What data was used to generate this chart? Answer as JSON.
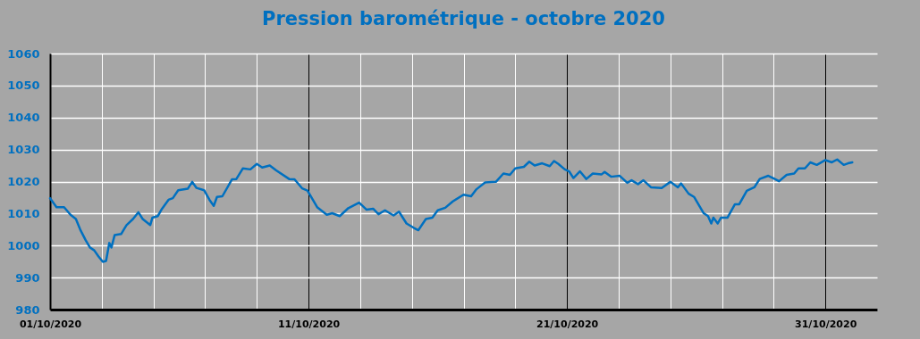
{
  "chart_data": {
    "type": "line",
    "title": "Pression barométrique - octobre 2020",
    "x": [
      "2020-10-01T00:00",
      "2020-10-01T06:00",
      "2020-10-01T13:00",
      "2020-10-01T19:00",
      "2020-10-02T00:00",
      "2020-10-02T04:00",
      "2020-10-02T09:00",
      "2020-10-02T13:00",
      "2020-10-02T17:00",
      "2020-10-02T21:00",
      "2020-10-03T01:00",
      "2020-10-03T04:00",
      "2020-10-03T07:00",
      "2020-10-03T09:00",
      "2020-10-03T12:00",
      "2020-10-03T18:00",
      "2020-10-03T23:00",
      "2020-10-04T05:00",
      "2020-10-04T10:00",
      "2020-10-04T14:00",
      "2020-10-04T21:00",
      "2020-10-04T23:00",
      "2020-10-05T04:00",
      "2020-10-05T08:00",
      "2020-10-05T14:00",
      "2020-10-05T18:00",
      "2020-10-05T23:00",
      "2020-10-06T08:00",
      "2020-10-06T12:00",
      "2020-10-06T16:00",
      "2020-10-06T23:00",
      "2020-10-07T04:00",
      "2020-10-07T08:00",
      "2020-10-07T11:00",
      "2020-10-07T16:00",
      "2020-10-08T01:00",
      "2020-10-08T05:00",
      "2020-10-08T11:00",
      "2020-10-08T18:00",
      "2020-10-09T00:00",
      "2020-10-09T05:00",
      "2020-10-09T12:00",
      "2020-10-09T18:00",
      "2020-10-10T06:00",
      "2020-10-10T11:00",
      "2020-10-10T18:00",
      "2020-10-10T23:00",
      "2020-10-11T04:00",
      "2020-10-11T08:00",
      "2020-10-11T17:00",
      "2020-10-11T22:00",
      "2020-10-12T05:00",
      "2020-10-12T13:00",
      "2020-10-12T23:00",
      "2020-10-13T06:00",
      "2020-10-13T12:00",
      "2020-10-13T17:00",
      "2020-10-13T23:00",
      "2020-10-14T07:00",
      "2020-10-14T12:00",
      "2020-10-14T19:00",
      "2020-10-15T02:00",
      "2020-10-15T06:00",
      "2020-10-15T13:00",
      "2020-10-15T19:00",
      "2020-10-16T00:00",
      "2020-10-16T07:00",
      "2020-10-16T14:00",
      "2020-10-17T00:00",
      "2020-10-17T07:00",
      "2020-10-17T12:00",
      "2020-10-17T20:00",
      "2020-10-18T06:00",
      "2020-10-18T13:00",
      "2020-10-18T19:00",
      "2020-10-19T00:00",
      "2020-10-19T08:00",
      "2020-10-19T13:00",
      "2020-10-19T18:00",
      "2020-10-20T01:00",
      "2020-10-20T08:00",
      "2020-10-20T12:00",
      "2020-10-20T16:00",
      "2020-10-20T22:00",
      "2020-10-21T02:00",
      "2020-10-21T06:00",
      "2020-10-21T12:00",
      "2020-10-21T18:00",
      "2020-10-22T00:00",
      "2020-10-22T08:00",
      "2020-10-22T11:00",
      "2020-10-22T17:00",
      "2020-10-23T01:00",
      "2020-10-23T08:00",
      "2020-10-23T12:00",
      "2020-10-23T18:00",
      "2020-10-23T23:00",
      "2020-10-24T06:00",
      "2020-10-24T16:00",
      "2020-10-25T00:00",
      "2020-10-25T07:00",
      "2020-10-25T10:00",
      "2020-10-25T17:00",
      "2020-10-25T22:00",
      "2020-10-26T07:00",
      "2020-10-26T11:00",
      "2020-10-26T14:00",
      "2020-10-26T16:00",
      "2020-10-26T20:00",
      "2020-10-26T23:00",
      "2020-10-27T05:00",
      "2020-10-27T12:00",
      "2020-10-27T16:00",
      "2020-10-27T23:00",
      "2020-10-28T06:00",
      "2020-10-28T11:00",
      "2020-10-28T19:00",
      "2020-10-29T01:00",
      "2020-10-29T05:00",
      "2020-10-29T12:00",
      "2020-10-29T19:00",
      "2020-10-29T23:00",
      "2020-10-30T05:00",
      "2020-10-30T10:00",
      "2020-10-30T16:00",
      "2020-10-31T00:00",
      "2020-10-31T06:00",
      "2020-10-31T11:00",
      "2020-10-31T17:00",
      "2020-10-31T21:00",
      "2020-11-01T01:00"
    ],
    "series": [
      {
        "color": "#0070c0",
        "values": [
          1014.8,
          1012.0,
          1012.0,
          1009.6,
          1008.3,
          1005.0,
          1001.7,
          999.4,
          998.5,
          996.6,
          994.9,
          995.2,
          1000.8,
          999.4,
          1003.3,
          1003.6,
          1006.4,
          1008.3,
          1010.4,
          1008.3,
          1006.4,
          1008.7,
          1009.2,
          1011.5,
          1014.3,
          1014.8,
          1017.3,
          1017.8,
          1019.9,
          1018.0,
          1017.3,
          1014.3,
          1012.4,
          1015.2,
          1015.4,
          1020.7,
          1020.8,
          1024.1,
          1023.8,
          1025.5,
          1024.4,
          1025.0,
          1023.5,
          1020.8,
          1020.7,
          1017.9,
          1017.2,
          1014.3,
          1012.0,
          1009.6,
          1010.1,
          1009.2,
          1011.7,
          1013.4,
          1011.2,
          1011.5,
          1009.8,
          1011.0,
          1009.4,
          1010.6,
          1006.9,
          1005.5,
          1004.8,
          1008.3,
          1008.7,
          1011.0,
          1011.8,
          1013.8,
          1015.9,
          1015.4,
          1017.6,
          1019.7,
          1019.9,
          1022.5,
          1022.1,
          1024.1,
          1024.6,
          1026.2,
          1025.0,
          1025.7,
          1024.8,
          1026.4,
          1025.5,
          1023.8,
          1023.2,
          1021.1,
          1023.2,
          1020.8,
          1022.5,
          1022.2,
          1023.0,
          1021.5,
          1021.8,
          1019.6,
          1020.4,
          1019.2,
          1020.4,
          1018.2,
          1018.0,
          1019.9,
          1018.2,
          1019.4,
          1016.2,
          1015.2,
          1010.1,
          1009.2,
          1006.9,
          1008.7,
          1006.9,
          1008.7,
          1008.7,
          1012.9,
          1012.9,
          1017.1,
          1018.2,
          1020.8,
          1021.8,
          1020.8,
          1020.1,
          1022.1,
          1022.5,
          1024.1,
          1024.1,
          1026.0,
          1025.2,
          1026.7,
          1026.0,
          1026.9,
          1025.2,
          1025.7,
          1026.0
        ]
      }
    ],
    "xlim": [
      "2020-10-01",
      "2020-11-02"
    ],
    "xticks": [
      {
        "value": "2020-10-01",
        "label": "01/10/2020"
      },
      {
        "value": "2020-10-03",
        "label": null
      },
      {
        "value": "2020-10-05",
        "label": null
      },
      {
        "value": "2020-10-07",
        "label": null
      },
      {
        "value": "2020-10-09",
        "label": null
      },
      {
        "value": "2020-10-11",
        "label": "11/10/2020"
      },
      {
        "value": "2020-10-13",
        "label": null
      },
      {
        "value": "2020-10-15",
        "label": null
      },
      {
        "value": "2020-10-17",
        "label": null
      },
      {
        "value": "2020-10-19",
        "label": null
      },
      {
        "value": "2020-10-21",
        "label": "21/10/2020"
      },
      {
        "value": "2020-10-23",
        "label": null
      },
      {
        "value": "2020-10-25",
        "label": null
      },
      {
        "value": "2020-10-27",
        "label": null
      },
      {
        "value": "2020-10-29",
        "label": null
      },
      {
        "value": "2020-10-31",
        "label": "31/10/2020"
      }
    ],
    "ylim": [
      980,
      1060
    ],
    "yticks": [
      980,
      990,
      1000,
      1010,
      1020,
      1030,
      1040,
      1050,
      1060
    ],
    "grid": true
  }
}
